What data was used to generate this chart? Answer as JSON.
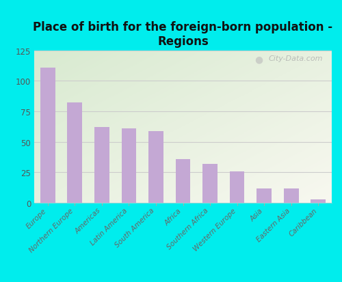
{
  "title": "Place of birth for the foreign-born population -\nRegions",
  "categories": [
    "Europe",
    "Northern Europe",
    "Americas",
    "Latin America",
    "South America",
    "Africa",
    "Southern Africa",
    "Western Europe",
    "Asia",
    "Eastern Asia",
    "Caribbean"
  ],
  "values": [
    111,
    82,
    62,
    61,
    59,
    36,
    32,
    26,
    12,
    12,
    3
  ],
  "bar_color": "#c4a8d4",
  "background_color": "#00eded",
  "plot_bg_top_left": "#d8ead0",
  "plot_bg_bottom_right": "#f0f0e8",
  "ylim": [
    0,
    125
  ],
  "yticks": [
    0,
    25,
    50,
    75,
    100,
    125
  ],
  "title_fontsize": 12,
  "tick_label_fontsize": 7.5,
  "ytick_fontsize": 8.5,
  "watermark_text": "City-Data.com",
  "grid_color": "#d0d8c8",
  "title_color": "#111111"
}
